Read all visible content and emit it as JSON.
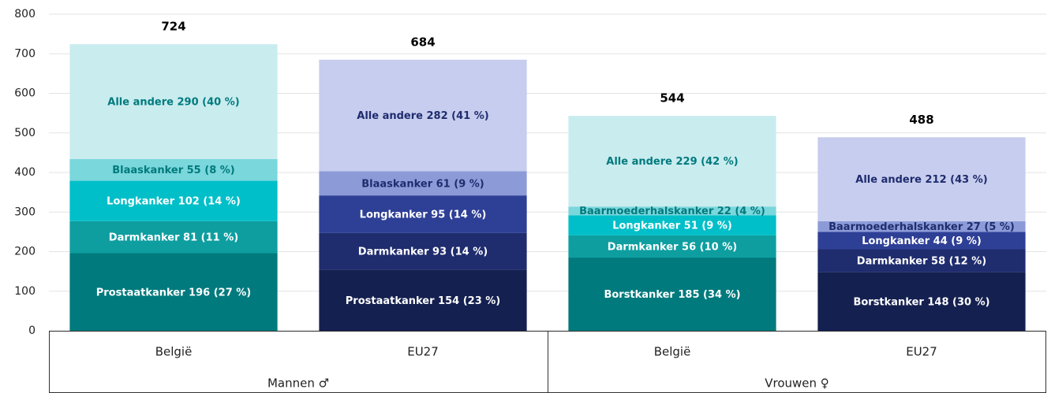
{
  "chart_data": {
    "type": "stacked_bar",
    "ylim": [
      0,
      800
    ],
    "yticks": [
      0,
      100,
      200,
      300,
      400,
      500,
      600,
      700,
      800
    ],
    "grid": true,
    "groups": [
      "Mannen ♂",
      "Vrouwen ♀"
    ],
    "bars": [
      {
        "category": "België",
        "group": 0,
        "total": 724,
        "segments": [
          {
            "value": 196,
            "label": "Prostaatkanker 196 (27 %)",
            "color": "#007a7d",
            "text_color": "#ffffff"
          },
          {
            "value": 81,
            "label": "Darmkanker 81 (11 %)",
            "color": "#0e9ea0",
            "text_color": "#ffffff"
          },
          {
            "value": 102,
            "label": "Longkanker 102 (14 %)",
            "color": "#00bfc8",
            "text_color": "#ffffff"
          },
          {
            "value": 55,
            "label": "Blaaskanker 55 (8 %)",
            "color": "#7ad7dc",
            "text_color": "#007a7d"
          },
          {
            "value": 290,
            "label": "Alle andere 290 (40 %)",
            "color": "#c9ecef",
            "text_color": "#007a7d"
          }
        ]
      },
      {
        "category": "EU27",
        "group": 0,
        "total": 684,
        "segments": [
          {
            "value": 154,
            "label": "Prostaatkanker 154 (23 %)",
            "color": "#14204f",
            "text_color": "#ffffff"
          },
          {
            "value": 93,
            "label": "Darmkanker 93 (14 %)",
            "color": "#1f2c6e",
            "text_color": "#ffffff"
          },
          {
            "value": 95,
            "label": "Longkanker 95 (14 %)",
            "color": "#2e3f96",
            "text_color": "#ffffff"
          },
          {
            "value": 61,
            "label": "Blaaskanker 61 (9 %)",
            "color": "#8c9bd8",
            "text_color": "#1f2c6e"
          },
          {
            "value": 282,
            "label": "Alle andere 282 (41 %)",
            "color": "#c7cdee",
            "text_color": "#1f2c6e"
          }
        ]
      },
      {
        "category": "België",
        "group": 1,
        "total": 544,
        "segments": [
          {
            "value": 185,
            "label": "Borstkanker 185 (34 %)",
            "color": "#007a7d",
            "text_color": "#ffffff"
          },
          {
            "value": 56,
            "label": "Darmkanker 56 (10 %)",
            "color": "#0e9ea0",
            "text_color": "#ffffff"
          },
          {
            "value": 51,
            "label": "Longkanker 51 (9 %)",
            "color": "#00bfc8",
            "text_color": "#ffffff"
          },
          {
            "value": 22,
            "label": "Baarmoederhalskanker 22 (4 %)",
            "color": "#7ad7dc",
            "text_color": "#007a7d"
          },
          {
            "value": 229,
            "label": "Alle andere 229 (42 %)",
            "color": "#c9ecef",
            "text_color": "#007a7d"
          }
        ]
      },
      {
        "category": "EU27",
        "group": 1,
        "total": 488,
        "segments": [
          {
            "value": 148,
            "label": "Borstkanker 148 (30 %)",
            "color": "#14204f",
            "text_color": "#ffffff"
          },
          {
            "value": 58,
            "label": "Darmkanker 58 (12 %)",
            "color": "#1f2c6e",
            "text_color": "#ffffff"
          },
          {
            "value": 44,
            "label": "Longkanker 44 (9 %)",
            "color": "#2e3f96",
            "text_color": "#ffffff"
          },
          {
            "value": 27,
            "label": "Baarmoederhalskanker 27 (5 %)",
            "color": "#8c9bd8",
            "text_color": "#1f2c6e"
          },
          {
            "value": 212,
            "label": "Alle andere 212 (43 %)",
            "color": "#c7cdee",
            "text_color": "#1f2c6e"
          }
        ]
      }
    ]
  }
}
